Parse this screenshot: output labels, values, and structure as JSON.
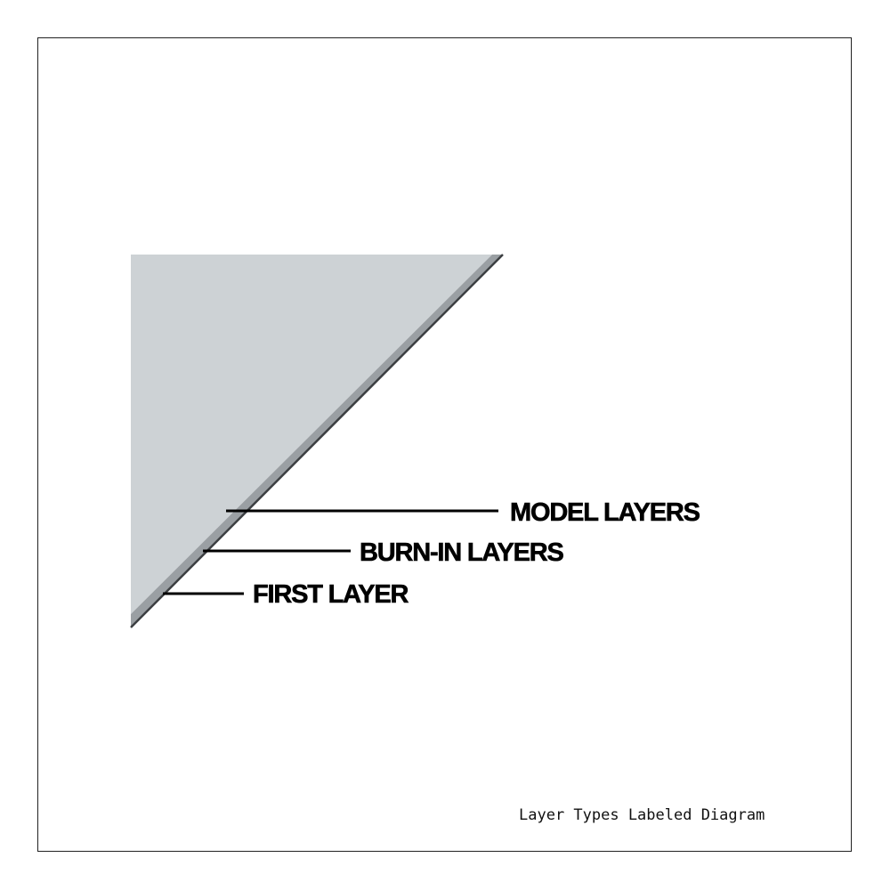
{
  "diagram": {
    "caption": "Layer Types Labeled Diagram",
    "labels": {
      "model_layers": "MODEL LAYERS",
      "burn_in_layers": "BURN-IN LAYERS",
      "first_layer": "FIRST LAYER"
    },
    "colors": {
      "model_layers_fill": "#cdd2d5",
      "burn_in_band": "#9a9fa3",
      "first_layer_line": "#3c3f42",
      "leader_lines": "#000000",
      "frame": "#222222"
    }
  }
}
